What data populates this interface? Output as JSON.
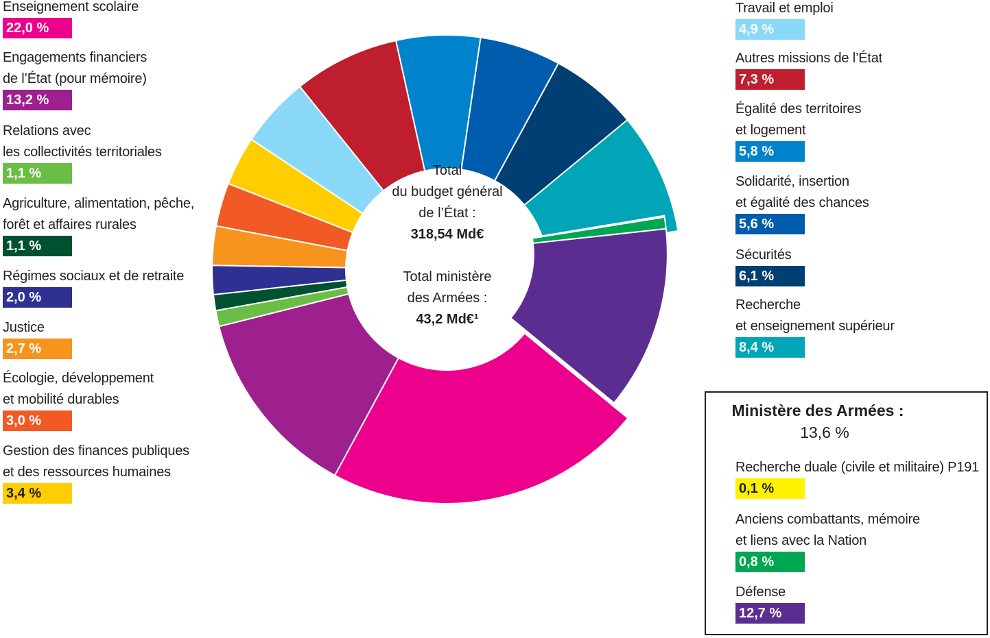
{
  "chart_data": {
    "type": "donut",
    "center": {
      "line1": "Total",
      "line2": "du budget général",
      "line3": "de l’État :",
      "total_budget": "318,54 Md€",
      "line4": "Total ministère",
      "line5": "des Armées :",
      "total_armees": "43,2 Md€¹"
    },
    "slices": [
      {
        "id": "recherche-enseignement-superieur",
        "lines": [
          "Recherche",
          "et enseignement supérieur"
        ],
        "value_label": "8,4 %",
        "value": 8.4,
        "color": "#00a6b8"
      },
      {
        "id": "securites",
        "lines": [
          "Sécurités"
        ],
        "value_label": "6,1 %",
        "value": 6.1,
        "color": "#003f72"
      },
      {
        "id": "solidarite-insertion",
        "lines": [
          "Solidarité, insertion",
          "et égalité des chances"
        ],
        "value_label": "5,6 %",
        "value": 5.6,
        "color": "#005cad"
      },
      {
        "id": "egalite-territoires",
        "lines": [
          "Égalité des territoires",
          "et logement"
        ],
        "value_label": "5,8 %",
        "value": 5.8,
        "color": "#0083cc"
      },
      {
        "id": "autres-missions",
        "lines": [
          "Autres missions de l’État"
        ],
        "value_label": "7,3 %",
        "value": 7.3,
        "color": "#be1e2d"
      },
      {
        "id": "travail-emploi",
        "lines": [
          "Travail et emploi"
        ],
        "value_label": "4,9 %",
        "value": 4.9,
        "color": "#8ad8f7"
      },
      {
        "id": "gestion-finances",
        "lines": [
          "Gestion des finances publiques",
          "et des ressources humaines"
        ],
        "value_label": "3,4 %",
        "value": 3.4,
        "color": "#ffcd00"
      },
      {
        "id": "ecologie",
        "lines": [
          "Écologie, développement",
          "et mobilité durables"
        ],
        "value_label": "3,0 %",
        "value": 3.0,
        "color": "#f15a24"
      },
      {
        "id": "justice",
        "lines": [
          "Justice"
        ],
        "value_label": "2,7 %",
        "value": 2.7,
        "color": "#f7941d"
      },
      {
        "id": "regimes-sociaux",
        "lines": [
          "Régimes sociaux et de retraite"
        ],
        "value_label": "2,0 %",
        "value": 2.0,
        "color": "#2e3192"
      },
      {
        "id": "agriculture",
        "lines": [
          "Agriculture, alimentation, pêche,",
          "forêt et affaires rurales"
        ],
        "value_label": "1,1 %",
        "value": 1.1,
        "color": "#005130"
      },
      {
        "id": "relations-collectivites",
        "lines": [
          "Relations avec",
          "les collectivités territoriales"
        ],
        "value_label": "1,1 %",
        "value": 1.1,
        "color": "#6abd45"
      },
      {
        "id": "engagements-financiers",
        "lines": [
          "Engagements financiers",
          "de l’État (pour mémoire)"
        ],
        "value_label": "13,2 %",
        "value": 13.2,
        "color": "#9e1f8e"
      },
      {
        "id": "enseignement-scolaire",
        "lines": [
          "Enseignement scolaire"
        ],
        "value_label": "22,0 %",
        "value": 22.0,
        "color": "#ec008c"
      },
      {
        "id": "defense",
        "lines": [
          "Défense"
        ],
        "value_label": "12,7 %",
        "value": 12.7,
        "color": "#5c2d91",
        "exploded": true
      },
      {
        "id": "anciens-combattants",
        "lines": [
          "Anciens combattants, mémoire",
          "et liens avec la Nation"
        ],
        "value_label": "0,8 %",
        "value": 0.8,
        "color": "#00a651",
        "exploded": true
      },
      {
        "id": "recherche-duale",
        "lines": [
          "Recherche duale (civile et militaire) P191"
        ],
        "value_label": "0,1 %",
        "value": 0.1,
        "color": "#fff200",
        "exploded": true
      }
    ],
    "armees_box": {
      "title": "Ministère des Armées :",
      "total": "13,6 %"
    }
  }
}
